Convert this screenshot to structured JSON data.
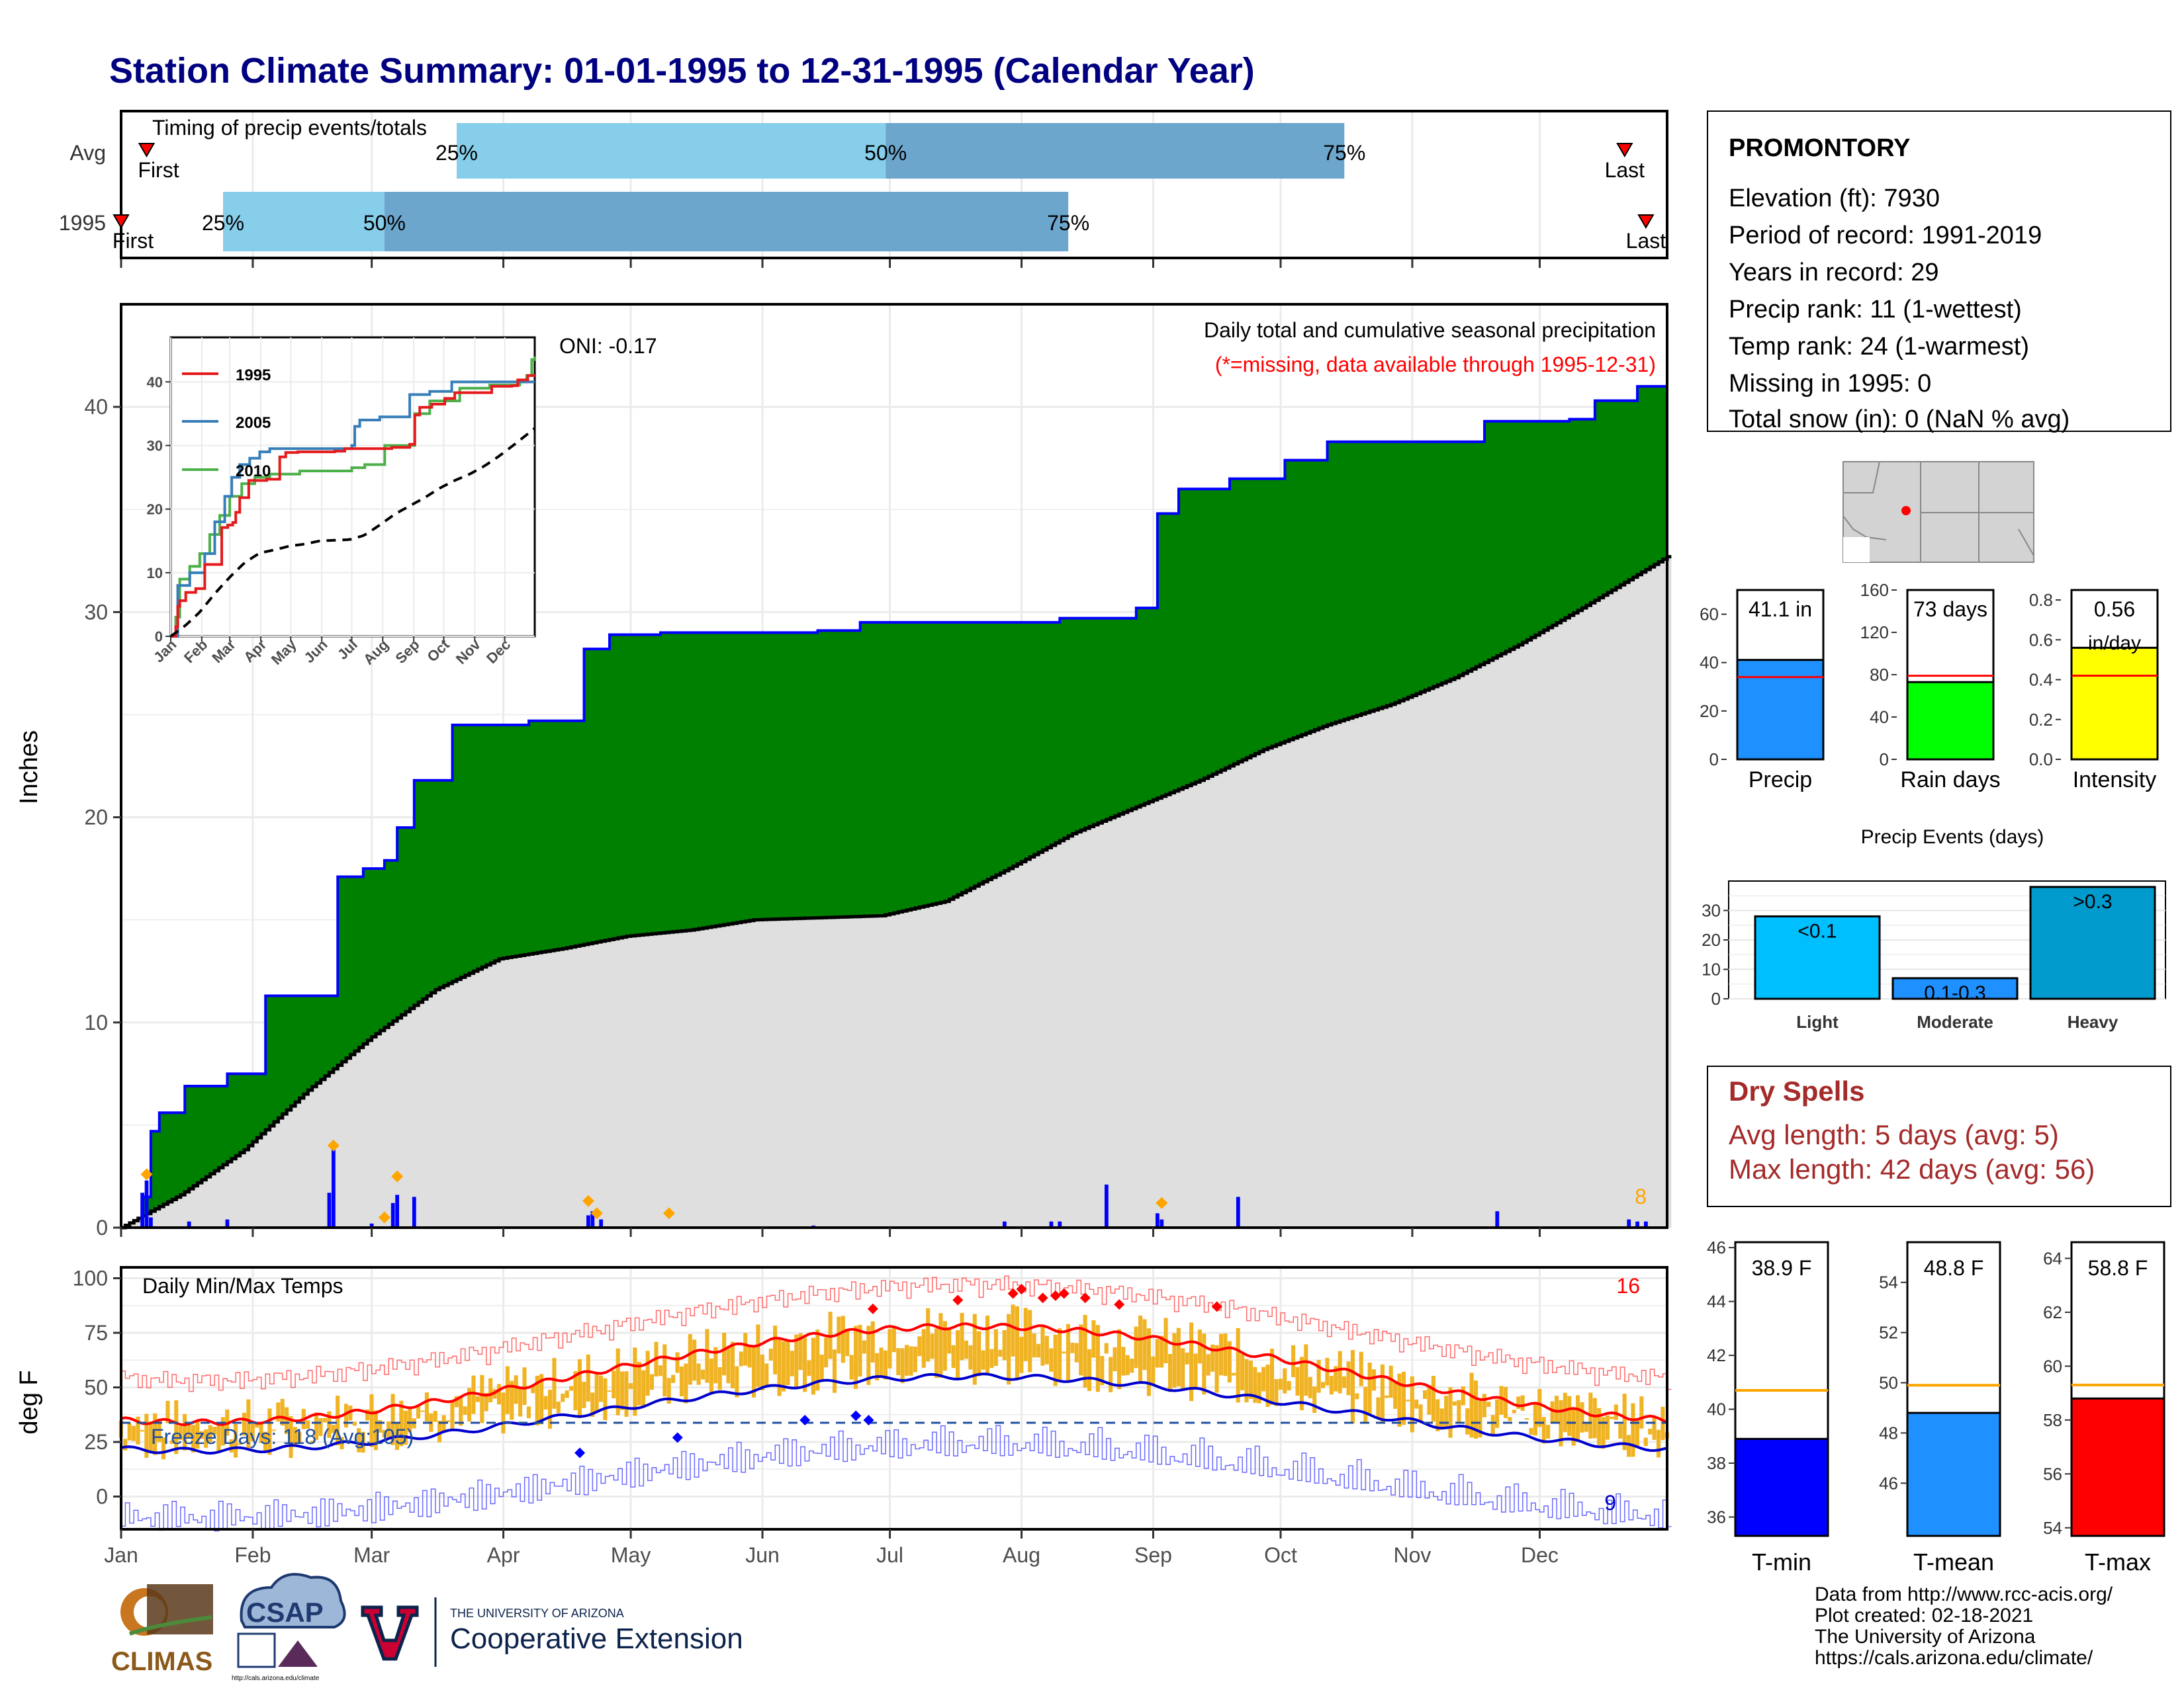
{
  "page_title": "Station Climate Summary: 01-01-1995 to 12-31-1995 (Calendar Year)",
  "months": [
    "Jan",
    "Feb",
    "Mar",
    "Apr",
    "May",
    "Jun",
    "Jul",
    "Aug",
    "Sep",
    "Oct",
    "Nov",
    "Dec"
  ],
  "colors": {
    "title": "#000080",
    "precip_fill": "#008000",
    "precip_line": "#0000FF",
    "normal_fill": "#DFDFDF",
    "daily_bar": "#0000FF",
    "event_marker": "#FFA500",
    "q_light": "#87CEEB",
    "q_dark": "#6CA6CD",
    "temp_bar": "#F0B323",
    "tmax": "#FF0000",
    "tmin": "#0000CD",
    "dry_spell": "#A52A2A"
  },
  "timing": {
    "title": "Timing of precip events/totals",
    "rows": [
      {
        "label": "Avg",
        "first_label": "First",
        "last_label": "Last",
        "first_day": 7,
        "last_day": 355,
        "q25_label": "25%",
        "q50_label": "50%",
        "q75_label": "75%",
        "q25_day": 80,
        "q50_day": 181,
        "q75_day": 289
      },
      {
        "label": "1995",
        "first_label": "First",
        "last_label": "Last",
        "first_day": 1,
        "last_day": 360,
        "q25_label": "25%",
        "q50_label": "50%",
        "q75_label": "75%",
        "q25_day": 25,
        "q50_day": 63,
        "q75_day": 224
      }
    ]
  },
  "station": {
    "name": "PROMONTORY",
    "lines": [
      "Elevation (ft): 7930",
      "Period of record: 1991-2019",
      "Years in record: 29",
      "Precip rank: 11 (1-wettest)",
      "Temp rank: 24 (1-warmest)",
      "Missing in 1995: 0",
      "Total snow (in): 0 (NaN % avg)"
    ]
  },
  "precip_panel": {
    "y_label": "Inches",
    "oni": "ONI: -0.17",
    "caption": "Daily total and cumulative seasonal precipitation",
    "missing_note": "(*=missing, data available through 1995-12-31)",
    "event_count": "8",
    "y_ticks": [
      "0",
      "10",
      "20",
      "30",
      "40"
    ]
  },
  "inset": {
    "series": [
      {
        "name": "1995",
        "color": "#E41A1C"
      },
      {
        "name": "2005",
        "color": "#377EB8"
      },
      {
        "name": "2010",
        "color": "#4DAF4A"
      }
    ],
    "y_ticks": [
      "0",
      "10",
      "20",
      "30",
      "40"
    ]
  },
  "bars_top": [
    {
      "label": "Precip",
      "value_label": "41.1 in",
      "color": "#1E90FF",
      "ticks": [
        "0",
        "20",
        "40",
        "60"
      ]
    },
    {
      "label": "Rain days",
      "value_label": "73 days",
      "color": "#00FF00",
      "ticks": [
        "0",
        "40",
        "80",
        "120",
        "160"
      ]
    },
    {
      "label": "Intensity",
      "value_label": "0.56",
      "value_label2": "in/day",
      "color": "#FFFF00",
      "ticks": [
        "0.0",
        "0.2",
        "0.4",
        "0.6",
        "0.8"
      ]
    }
  ],
  "events": {
    "title": "Precip Events (days)",
    "ticks": [
      "0",
      "10",
      "20",
      "30"
    ],
    "bars": [
      {
        "name": "Light",
        "label": "<0.1",
        "value": 28,
        "color": "#00BFFF"
      },
      {
        "name": "Moderate",
        "label": "0.1-0.3",
        "value": 7,
        "color": "#1E90FF"
      },
      {
        "name": "Heavy",
        "label": ">0.3",
        "value": 38,
        "color": "#009ACD"
      }
    ]
  },
  "dry_spells": {
    "title": "Dry Spells",
    "avg_line": "Avg length: 5 days (avg: 5)",
    "max_line": "Max length: 42 days (avg: 56)"
  },
  "temp_panel": {
    "title": "Daily Min/Max Temps",
    "y_label": "deg F",
    "freeze": "Freeze Days: 118 (Avg:105)",
    "hot_count": "16",
    "cold_count": "9",
    "y_ticks": [
      "0",
      "25",
      "50",
      "75",
      "100"
    ]
  },
  "temp_bars": [
    {
      "label": "T-min",
      "value_label": "38.9 F",
      "value": 38.9,
      "avg": 40.7,
      "min": 35.3,
      "max": 46.2,
      "color": "#0000FF",
      "ticks": [
        "36",
        "38",
        "40",
        "42",
        "44",
        "46"
      ]
    },
    {
      "label": "T-mean",
      "value_label": "48.8 F",
      "value": 48.8,
      "avg": 49.9,
      "min": 43.9,
      "max": 55.6,
      "color": "#1E90FF",
      "ticks": [
        "46",
        "48",
        "50",
        "52",
        "54"
      ]
    },
    {
      "label": "T-max",
      "value_label": "58.8 F",
      "value": 58.8,
      "avg": 59.3,
      "min": 53.7,
      "max": 64.6,
      "color": "#FF0000",
      "ticks": [
        "54",
        "56",
        "58",
        "60",
        "62",
        "64"
      ]
    }
  ],
  "footer": {
    "lines": [
      "Data from http://www.rcc-acis.org/",
      "Plot created: 02-18-2021",
      "The University of Arizona",
      "https://cals.arizona.edu/climate/"
    ],
    "logo1": "CLIMAS",
    "logo2": "CSAP",
    "logo2_sub": "http://cals.arizona.edu/climate",
    "ua_small": "THE UNIVERSITY OF ARIZONA",
    "ua_big": "Cooperative Extension"
  },
  "chart_data": {
    "type": "area",
    "title": "Daily total and cumulative seasonal precipitation",
    "ylabel": "Inches",
    "ylim": [
      0,
      45
    ],
    "xlim_days": [
      1,
      365
    ],
    "series": [
      {
        "name": "1995 cumulative",
        "x": [
          1,
          6,
          8,
          10,
          16,
          26,
          35,
          43,
          52,
          58,
          63,
          66,
          70,
          79,
          97,
          110,
          116,
          124,
          128,
          165,
          175,
          222,
          240,
          245,
          250,
          262,
          275,
          285,
          322,
          342,
          348,
          358,
          365
        ],
        "values": [
          0,
          1.5,
          4.7,
          5.6,
          6.9,
          7.5,
          11.3,
          11.3,
          17.1,
          17.5,
          17.9,
          19.5,
          21.8,
          24.5,
          24.7,
          28.2,
          28.9,
          28.9,
          29.0,
          29.1,
          29.5,
          29.7,
          30.2,
          34.8,
          36.0,
          36.5,
          37.4,
          38.3,
          39.3,
          39.4,
          40.3,
          41.0,
          41.1
        ]
      },
      {
        "name": "Average cumulative",
        "x": [
          1,
          15,
          30,
          45,
          60,
          75,
          90,
          105,
          120,
          135,
          150,
          165,
          180,
          195,
          210,
          225,
          240,
          255,
          270,
          285,
          300,
          315,
          330,
          345,
          365
        ],
        "values": [
          0,
          1.6,
          3.8,
          6.7,
          9.3,
          11.6,
          13.1,
          13.6,
          14.2,
          14.5,
          15.0,
          15.1,
          15.2,
          15.9,
          17.5,
          19.2,
          20.5,
          21.8,
          23.3,
          24.5,
          25.5,
          26.8,
          28.4,
          30.2,
          32.7
        ]
      }
    ],
    "daily_precip": {
      "x": [
        6,
        7,
        8,
        17,
        26,
        50,
        51,
        60,
        65,
        66,
        70,
        111,
        112,
        114,
        164,
        209,
        220,
        222,
        233,
        245,
        246,
        264,
        325,
        356,
        358,
        360
      ],
      "values": [
        1.7,
        2.3,
        0.5,
        0.3,
        0.4,
        1.7,
        3.8,
        0.2,
        1.2,
        1.6,
        1.5,
        0.6,
        0.8,
        0.4,
        0.1,
        0.3,
        0.3,
        0.3,
        2.1,
        0.7,
        0.4,
        1.5,
        0.8,
        0.4,
        0.3,
        0.3
      ]
    }
  }
}
